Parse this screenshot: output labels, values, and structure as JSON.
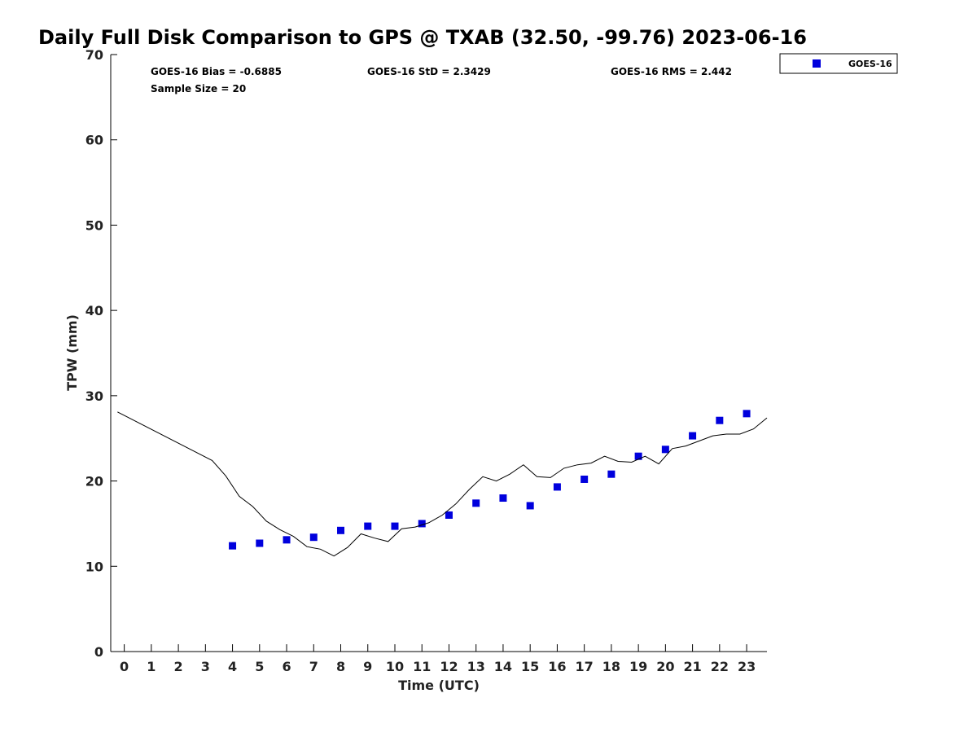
{
  "chart_data": {
    "type": "scatter",
    "title": "Daily Full Disk Comparison to GPS @ TXAB (32.50, -99.76) 2023-06-16",
    "xlabel": "Time (UTC)",
    "ylabel": "TPW (mm)",
    "xlim": [
      -0.5,
      23.75
    ],
    "ylim": [
      0,
      70
    ],
    "x_ticks": [
      0,
      1,
      2,
      3,
      4,
      5,
      6,
      7,
      8,
      9,
      10,
      11,
      12,
      13,
      14,
      15,
      16,
      17,
      18,
      19,
      20,
      21,
      22,
      23
    ],
    "x_tick_labels": [
      "0",
      "1",
      "2",
      "3",
      "4",
      "5",
      "6",
      "7",
      "8",
      "9",
      "10",
      "11",
      "12",
      "13",
      "14",
      "15",
      "16",
      "17",
      "18",
      "19",
      "20",
      "21",
      "22",
      "23"
    ],
    "y_ticks": [
      0,
      10,
      20,
      30,
      40,
      50,
      60,
      70
    ],
    "y_tick_labels": [
      "0",
      "10",
      "20",
      "30",
      "40",
      "50",
      "60",
      "70"
    ],
    "stats": {
      "bias": "GOES-16 Bias = -0.6885",
      "std": "GOES-16 StD = 2.3429",
      "rms": "GOES-16 RMS = 2.442",
      "sample_size": "Sample Size = 20"
    },
    "legend": {
      "position": "top-right",
      "entries": [
        "GOES-16"
      ]
    },
    "series": [
      {
        "name": "GOES-16",
        "kind": "markers",
        "color": "#0000dd",
        "x": [
          4,
          5,
          6,
          7,
          8,
          9,
          10,
          11,
          12,
          13,
          14,
          15,
          16,
          17,
          18,
          19,
          20,
          21,
          22,
          23
        ],
        "y": [
          12.4,
          12.7,
          13.1,
          13.4,
          14.2,
          14.7,
          14.7,
          15.0,
          16.0,
          17.4,
          18.0,
          17.1,
          19.3,
          20.2,
          20.8,
          22.9,
          23.7,
          25.3,
          27.1,
          27.9
        ]
      },
      {
        "name": "GPS",
        "kind": "line",
        "color": "#000000",
        "x": [
          -0.25,
          3.25,
          3.75,
          4.25,
          4.75,
          5.25,
          5.75,
          6.25,
          6.75,
          7.25,
          7.75,
          8.25,
          8.75,
          9.25,
          9.75,
          10.25,
          10.75,
          11.25,
          11.75,
          12.25,
          12.75,
          13.25,
          13.75,
          14.25,
          14.75,
          15.25,
          15.75,
          16.25,
          16.75,
          17.25,
          17.75,
          18.25,
          18.75,
          19.25,
          19.75,
          20.25,
          20.75,
          21.25,
          21.75,
          22.25,
          22.75,
          23.25,
          23.75
        ],
        "y": [
          28.1,
          22.4,
          20.6,
          18.2,
          17.0,
          15.3,
          14.3,
          13.5,
          12.3,
          12.0,
          11.2,
          12.2,
          13.8,
          13.3,
          12.9,
          14.4,
          14.6,
          15.1,
          16.0,
          17.3,
          19.0,
          20.5,
          20.0,
          20.8,
          21.9,
          20.5,
          20.4,
          21.5,
          21.9,
          22.1,
          22.9,
          22.3,
          22.2,
          22.9,
          22.0,
          23.8,
          24.1,
          24.7,
          25.3,
          25.5,
          25.5,
          26.1,
          27.4
        ]
      }
    ]
  }
}
